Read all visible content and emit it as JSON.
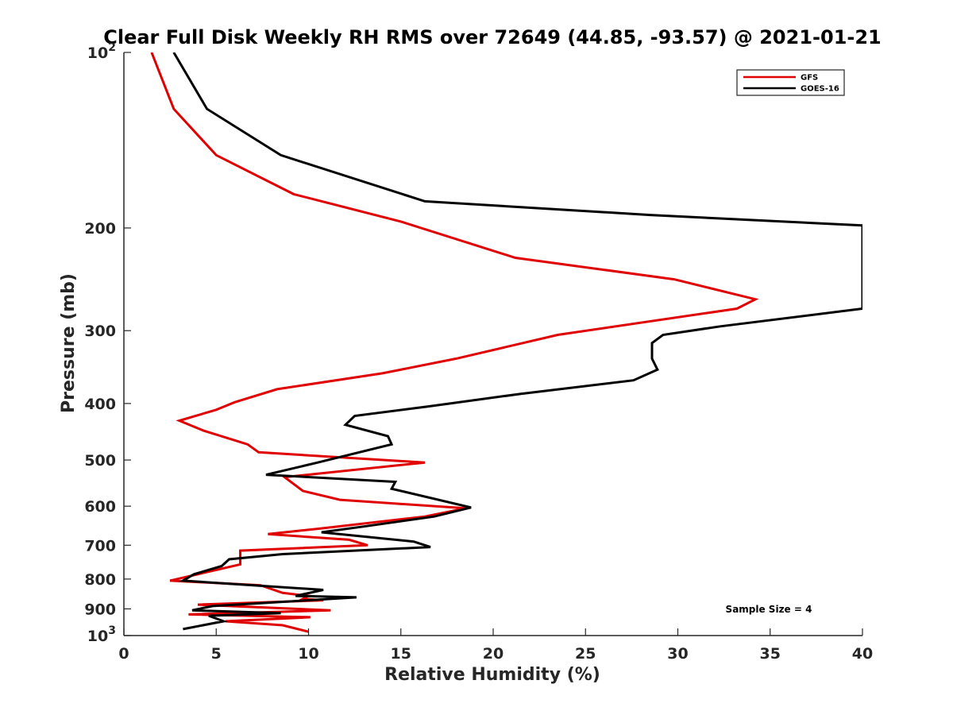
{
  "chart_data": {
    "type": "line",
    "title": "Clear Full Disk Weekly RH RMS over 72649 (44.85, -93.57) @ 2021-01-21",
    "xlabel": "Relative Humidity (%)",
    "ylabel": "Pressure (mb)",
    "xlim": [
      0,
      40
    ],
    "ylim": [
      100,
      1000
    ],
    "y_scale": "log",
    "y_reversed": true,
    "grid": false,
    "legend_position": "top-right",
    "x_ticks": [
      0,
      5,
      10,
      15,
      20,
      25,
      30,
      35,
      40
    ],
    "x_tick_labels": [
      "0",
      "5",
      "10",
      "15",
      "20",
      "25",
      "30",
      "35",
      "40"
    ],
    "y_ticks": [
      100,
      200,
      300,
      400,
      500,
      600,
      700,
      800,
      900,
      1000
    ],
    "y_tick_labels": [
      {
        "base": "10",
        "exp": "2"
      },
      {
        "base": "200",
        "exp": ""
      },
      {
        "base": "300",
        "exp": ""
      },
      {
        "base": "400",
        "exp": ""
      },
      {
        "base": "500",
        "exp": ""
      },
      {
        "base": "600",
        "exp": ""
      },
      {
        "base": "700",
        "exp": ""
      },
      {
        "base": "800",
        "exp": ""
      },
      {
        "base": "900",
        "exp": ""
      },
      {
        "base": "10",
        "exp": "3"
      }
    ],
    "series": [
      {
        "name": "GFS",
        "color": "#e00000",
        "points": [
          [
            1.5,
            100
          ],
          [
            2.7,
            125
          ],
          [
            5.0,
            150
          ],
          [
            9.2,
            175
          ],
          [
            15.0,
            195
          ],
          [
            21.2,
            225
          ],
          [
            29.8,
            245
          ],
          [
            34.2,
            265
          ],
          [
            33.2,
            275
          ],
          [
            23.5,
            305
          ],
          [
            18.0,
            335
          ],
          [
            14.0,
            355
          ],
          [
            8.3,
            378
          ],
          [
            6.0,
            398
          ],
          [
            5.0,
            410
          ],
          [
            3.0,
            428
          ],
          [
            4.3,
            445
          ],
          [
            6.7,
            470
          ],
          [
            7.3,
            485
          ],
          [
            16.3,
            505
          ],
          [
            8.7,
            535
          ],
          [
            9.7,
            565
          ],
          [
            11.7,
            585
          ],
          [
            18.5,
            605
          ],
          [
            16.3,
            625
          ],
          [
            10.7,
            655
          ],
          [
            7.8,
            670
          ],
          [
            12.2,
            685
          ],
          [
            13.2,
            700
          ],
          [
            6.3,
            715
          ],
          [
            6.3,
            755
          ],
          [
            2.5,
            805
          ],
          [
            7.4,
            820
          ],
          [
            8.6,
            845
          ],
          [
            10.0,
            855
          ],
          [
            9.7,
            865
          ],
          [
            10.8,
            870
          ],
          [
            4.0,
            885
          ],
          [
            11.2,
            905
          ],
          [
            3.5,
            920
          ],
          [
            10.1,
            930
          ],
          [
            5.5,
            945
          ],
          [
            8.6,
            960
          ],
          [
            10.0,
            985
          ]
        ]
      },
      {
        "name": "GOES-16",
        "color": "#000000",
        "points": [
          [
            2.7,
            100
          ],
          [
            4.5,
            125
          ],
          [
            8.5,
            150
          ],
          [
            16.3,
            180
          ],
          [
            28.5,
            190
          ],
          [
            40.0,
            198
          ],
          [
            40.0,
            275
          ],
          [
            32.3,
            295
          ],
          [
            29.2,
            305
          ],
          [
            28.6,
            315
          ],
          [
            28.6,
            335
          ],
          [
            28.9,
            350
          ],
          [
            27.6,
            365
          ],
          [
            21.5,
            385
          ],
          [
            16.4,
            405
          ],
          [
            12.5,
            420
          ],
          [
            12.0,
            435
          ],
          [
            14.3,
            455
          ],
          [
            14.5,
            470
          ],
          [
            10.5,
            505
          ],
          [
            7.7,
            530
          ],
          [
            14.7,
            545
          ],
          [
            14.5,
            560
          ],
          [
            18.8,
            603
          ],
          [
            16.8,
            625
          ],
          [
            13.0,
            650
          ],
          [
            10.7,
            665
          ],
          [
            15.7,
            690
          ],
          [
            16.6,
            705
          ],
          [
            8.6,
            725
          ],
          [
            5.7,
            740
          ],
          [
            5.3,
            760
          ],
          [
            3.8,
            785
          ],
          [
            3.2,
            805
          ],
          [
            10.8,
            835
          ],
          [
            9.3,
            855
          ],
          [
            12.6,
            860
          ],
          [
            4.8,
            890
          ],
          [
            3.7,
            905
          ],
          [
            8.5,
            915
          ],
          [
            4.6,
            925
          ],
          [
            5.4,
            945
          ],
          [
            3.2,
            975
          ]
        ]
      }
    ],
    "annotations": [
      {
        "text": "Sample Size = 4"
      }
    ]
  }
}
